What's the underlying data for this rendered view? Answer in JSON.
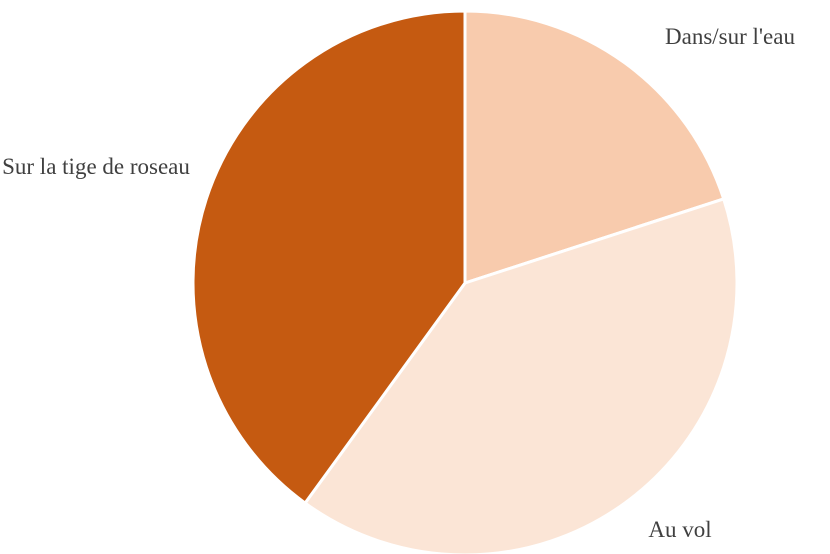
{
  "chart_data": {
    "type": "pie",
    "categories": [
      "Dans/sur l'eau",
      "Au vol",
      "Sur la tige de roseau"
    ],
    "values": [
      20,
      40,
      40
    ],
    "colors": [
      "#f8cbad",
      "#fbe5d6",
      "#c55a11"
    ]
  }
}
